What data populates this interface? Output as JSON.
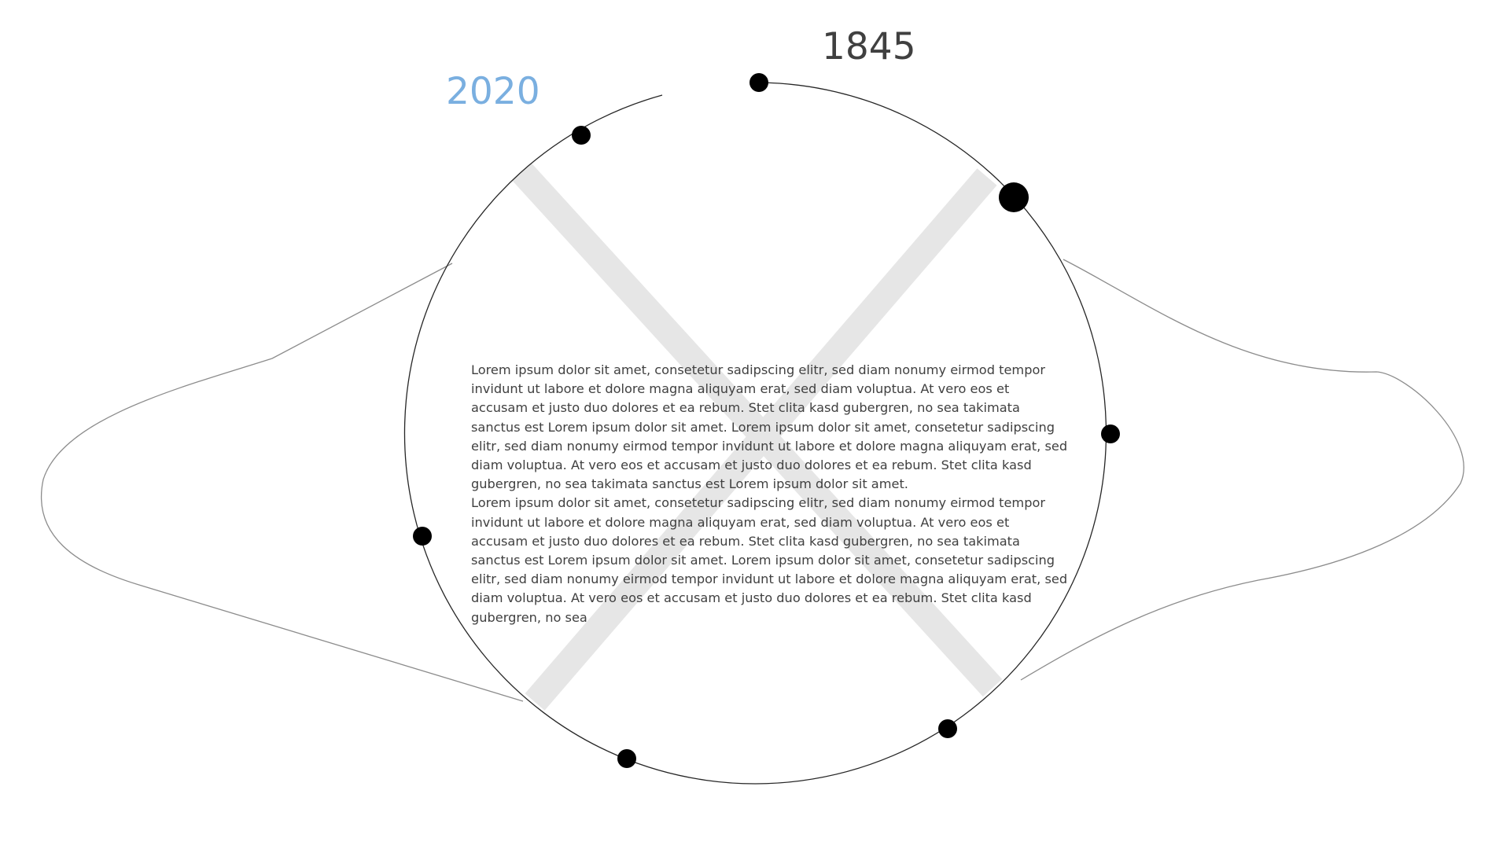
{
  "timeline": {
    "start_year": "1845",
    "end_year": "2020",
    "colors": {
      "start_year": "#404040",
      "end_year": "#7aafe0",
      "ring": "#262626",
      "outline": "#8c8c8c",
      "cross": "#e6e6e6",
      "marker": "#000000"
    },
    "marker_count": 8
  },
  "body": {
    "paragraph_1": "Lorem ipsum dolor sit amet, consetetur sadipscing elitr, sed diam nonumy eirmod tempor invidunt ut labore et dolore magna aliquyam erat, sed diam voluptua. At vero eos et accusam et justo duo dolores et ea rebum. Stet clita kasd gubergren, no sea takimata sanctus est Lorem ipsum dolor sit amet. Lorem ipsum dolor sit amet, consetetur sadipscing elitr, sed diam nonumy eirmod tempor invidunt ut labore et dolore magna aliquyam erat, sed diam voluptua. At vero eos et accusam et justo duo dolores et ea rebum. Stet clita kasd gubergren, no sea takimata sanctus est Lorem ipsum dolor sit amet.",
    "paragraph_2": "Lorem ipsum dolor sit amet, consetetur sadipscing elitr, sed diam nonumy eirmod tempor invidunt ut labore et dolore magna aliquyam erat, sed diam voluptua. At vero eos et accusam et justo duo dolores et ea rebum. Stet clita kasd gubergren, no sea takimata sanctus est Lorem ipsum dolor sit amet. Lorem ipsum dolor sit amet, consetetur sadipscing elitr, sed diam nonumy eirmod tempor invidunt ut labore et dolore magna aliquyam erat, sed diam voluptua. At vero eos et accusam et justo duo dolores et ea rebum. Stet clita kasd gubergren, no sea"
  }
}
